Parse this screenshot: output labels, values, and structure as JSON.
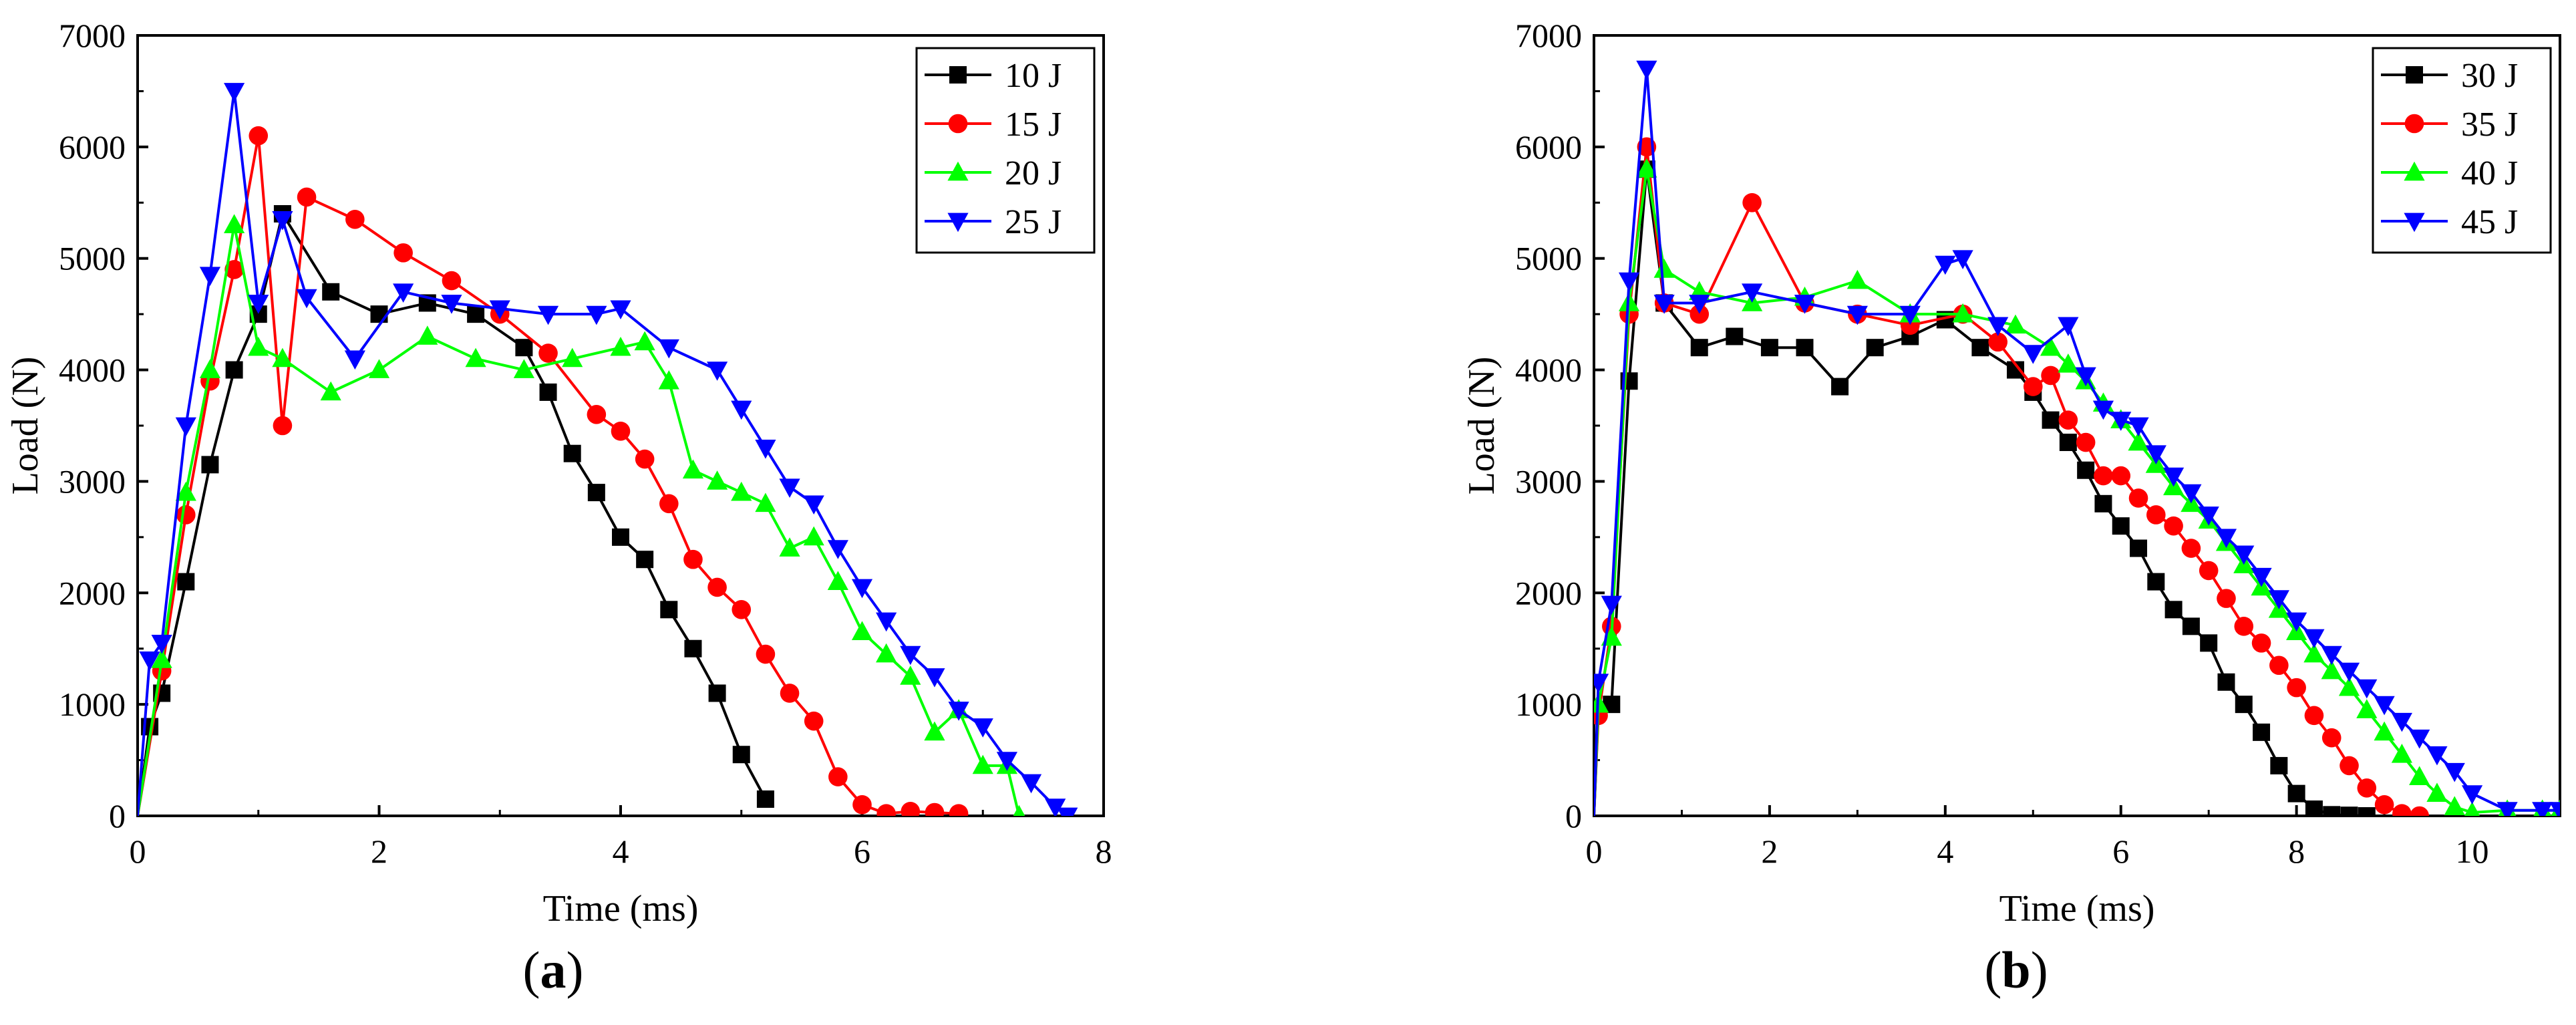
{
  "figure": {
    "caption_a": "a",
    "caption_b": "b"
  },
  "chart_data": [
    {
      "panel": "a",
      "type": "line",
      "xlabel": "Time (ms)",
      "ylabel": "Load (N)",
      "xlim": [
        0,
        8
      ],
      "ylim": [
        0,
        7000
      ],
      "xticks": [
        0,
        2,
        4,
        6,
        8
      ],
      "yticks": [
        0,
        1000,
        2000,
        3000,
        4000,
        5000,
        6000,
        7000
      ],
      "legend_position": "top-right",
      "series": [
        {
          "name": "10 J",
          "color": "#000000",
          "marker": "square",
          "x": [
            0,
            0.1,
            0.2,
            0.4,
            0.6,
            0.8,
            1.0,
            1.2,
            1.6,
            2.0,
            2.4,
            2.8,
            3.2,
            3.4,
            3.6,
            3.8,
            4.0,
            4.2,
            4.4,
            4.6,
            4.8,
            5.0,
            5.2
          ],
          "y": [
            0,
            800,
            1100,
            2100,
            3150,
            4000,
            4500,
            5400,
            4700,
            4500,
            4600,
            4500,
            4200,
            3800,
            3250,
            2900,
            2500,
            2300,
            1850,
            1500,
            1100,
            550,
            150
          ]
        },
        {
          "name": "15 J",
          "color": "#ff0000",
          "marker": "circle",
          "x": [
            0,
            0.2,
            0.4,
            0.6,
            0.8,
            1.0,
            1.2,
            1.4,
            1.8,
            2.2,
            2.6,
            3.0,
            3.4,
            3.8,
            4.0,
            4.2,
            4.4,
            4.6,
            4.8,
            5.0,
            5.2,
            5.4,
            5.6,
            5.8,
            6.0,
            6.2,
            6.4,
            6.6,
            6.8
          ],
          "y": [
            0,
            1300,
            2700,
            3900,
            4900,
            6100,
            3500,
            5550,
            5350,
            5050,
            4800,
            4500,
            4150,
            3600,
            3450,
            3200,
            2800,
            2300,
            2050,
            1850,
            1450,
            1100,
            850,
            350,
            100,
            20,
            40,
            30,
            20
          ]
        },
        {
          "name": "20 J",
          "color": "#00ff00",
          "marker": "triangle-up",
          "x": [
            0,
            0.2,
            0.4,
            0.6,
            0.8,
            1.0,
            1.2,
            1.6,
            2.0,
            2.4,
            2.8,
            3.2,
            3.6,
            4.0,
            4.2,
            4.4,
            4.6,
            4.8,
            5.0,
            5.2,
            5.4,
            5.6,
            5.8,
            6.0,
            6.2,
            6.4,
            6.6,
            6.8,
            7.0,
            7.2,
            7.3
          ],
          "y": [
            0,
            1400,
            2900,
            4000,
            5300,
            4200,
            4100,
            3800,
            4000,
            4300,
            4100,
            4000,
            4100,
            4200,
            4250,
            3900,
            3100,
            3000,
            2900,
            2800,
            2400,
            2500,
            2100,
            1650,
            1450,
            1250,
            750,
            950,
            450,
            450,
            0
          ]
        },
        {
          "name": "25 J",
          "color": "#0000ff",
          "marker": "triangle-down",
          "x": [
            0,
            0.1,
            0.2,
            0.4,
            0.6,
            0.8,
            1.0,
            1.2,
            1.4,
            1.8,
            2.2,
            2.6,
            3.0,
            3.4,
            3.8,
            4.0,
            4.4,
            4.8,
            5.0,
            5.2,
            5.4,
            5.6,
            5.8,
            6.0,
            6.2,
            6.4,
            6.6,
            6.8,
            7.0,
            7.2,
            7.4,
            7.6,
            7.7
          ],
          "y": [
            0,
            1400,
            1550,
            3500,
            4850,
            6500,
            4600,
            5350,
            4650,
            4100,
            4700,
            4600,
            4550,
            4500,
            4500,
            4550,
            4200,
            4000,
            3650,
            3300,
            2950,
            2800,
            2400,
            2050,
            1750,
            1450,
            1250,
            950,
            800,
            500,
            300,
            80,
            0
          ]
        }
      ]
    },
    {
      "panel": "b",
      "type": "line",
      "xlabel": "Time (ms)",
      "ylabel": "Load (N)",
      "xlim": [
        0,
        11
      ],
      "ylim": [
        0,
        7000
      ],
      "xticks": [
        0,
        2,
        4,
        6,
        8,
        10
      ],
      "yticks": [
        0,
        1000,
        2000,
        3000,
        4000,
        5000,
        6000,
        7000
      ],
      "legend_position": "top-right",
      "series": [
        {
          "name": "30 J",
          "color": "#000000",
          "marker": "square",
          "x": [
            0,
            0.05,
            0.2,
            0.4,
            0.6,
            0.8,
            1.2,
            1.6,
            2.0,
            2.4,
            2.8,
            3.2,
            3.6,
            4.0,
            4.4,
            4.8,
            5.0,
            5.2,
            5.4,
            5.6,
            5.8,
            6.0,
            6.2,
            6.4,
            6.6,
            6.8,
            7.0,
            7.2,
            7.4,
            7.6,
            7.8,
            8.0,
            8.2,
            8.4,
            8.6,
            8.8
          ],
          "y": [
            0,
            950,
            1000,
            3900,
            5800,
            4600,
            4200,
            4300,
            4200,
            4200,
            3850,
            4200,
            4300,
            4450,
            4200,
            4000,
            3800,
            3550,
            3350,
            3100,
            2800,
            2600,
            2400,
            2100,
            1850,
            1700,
            1550,
            1200,
            1000,
            750,
            450,
            200,
            60,
            10,
            5,
            0
          ]
        },
        {
          "name": "35 J",
          "color": "#ff0000",
          "marker": "circle",
          "x": [
            0,
            0.05,
            0.2,
            0.4,
            0.6,
            0.8,
            1.2,
            1.8,
            2.4,
            3.0,
            3.6,
            4.2,
            4.6,
            5.0,
            5.2,
            5.4,
            5.6,
            5.8,
            6.0,
            6.2,
            6.4,
            6.6,
            6.8,
            7.0,
            7.2,
            7.4,
            7.6,
            7.8,
            8.0,
            8.2,
            8.4,
            8.6,
            8.8,
            9.0,
            9.2,
            9.4
          ],
          "y": [
            0,
            900,
            1700,
            4500,
            6000,
            4600,
            4500,
            5500,
            4600,
            4500,
            4400,
            4500,
            4250,
            3850,
            3950,
            3550,
            3350,
            3050,
            3050,
            2850,
            2700,
            2600,
            2400,
            2200,
            1950,
            1700,
            1550,
            1350,
            1150,
            900,
            700,
            450,
            250,
            100,
            20,
            0
          ]
        },
        {
          "name": "40 J",
          "color": "#00ff00",
          "marker": "triangle-up",
          "x": [
            0,
            0.05,
            0.2,
            0.4,
            0.6,
            0.8,
            1.2,
            1.8,
            2.4,
            3.0,
            3.6,
            4.2,
            4.8,
            5.2,
            5.4,
            5.6,
            5.8,
            6.0,
            6.2,
            6.4,
            6.6,
            6.8,
            7.0,
            7.2,
            7.4,
            7.6,
            7.8,
            8.0,
            8.2,
            8.4,
            8.6,
            8.8,
            9.0,
            9.2,
            9.4,
            9.6,
            9.8,
            10.0,
            10.4,
            10.8,
            11.0
          ],
          "y": [
            0,
            1000,
            1600,
            4600,
            5800,
            4900,
            4700,
            4600,
            4650,
            4800,
            4500,
            4500,
            4400,
            4200,
            4050,
            3900,
            3700,
            3550,
            3350,
            3150,
            2950,
            2800,
            2650,
            2450,
            2250,
            2050,
            1850,
            1650,
            1450,
            1300,
            1150,
            950,
            750,
            550,
            350,
            200,
            80,
            30,
            50,
            50,
            50
          ]
        },
        {
          "name": "45 J",
          "color": "#0000ff",
          "marker": "triangle-down",
          "x": [
            0,
            0.05,
            0.2,
            0.4,
            0.6,
            0.8,
            1.2,
            1.8,
            2.4,
            3.0,
            3.6,
            4.0,
            4.2,
            4.6,
            5.0,
            5.4,
            5.6,
            5.8,
            6.0,
            6.2,
            6.4,
            6.6,
            6.8,
            7.0,
            7.2,
            7.4,
            7.6,
            7.8,
            8.0,
            8.2,
            8.4,
            8.6,
            8.8,
            9.0,
            9.2,
            9.4,
            9.6,
            9.8,
            10.0,
            10.4,
            10.8,
            11.0
          ],
          "y": [
            0,
            1200,
            1900,
            4800,
            6700,
            4600,
            4600,
            4700,
            4600,
            4500,
            4500,
            4950,
            5000,
            4400,
            4150,
            4400,
            3950,
            3650,
            3550,
            3500,
            3250,
            3050,
            2900,
            2700,
            2500,
            2350,
            2150,
            1950,
            1750,
            1600,
            1450,
            1300,
            1150,
            1000,
            850,
            700,
            550,
            400,
            200,
            50,
            50,
            50
          ]
        }
      ]
    }
  ]
}
